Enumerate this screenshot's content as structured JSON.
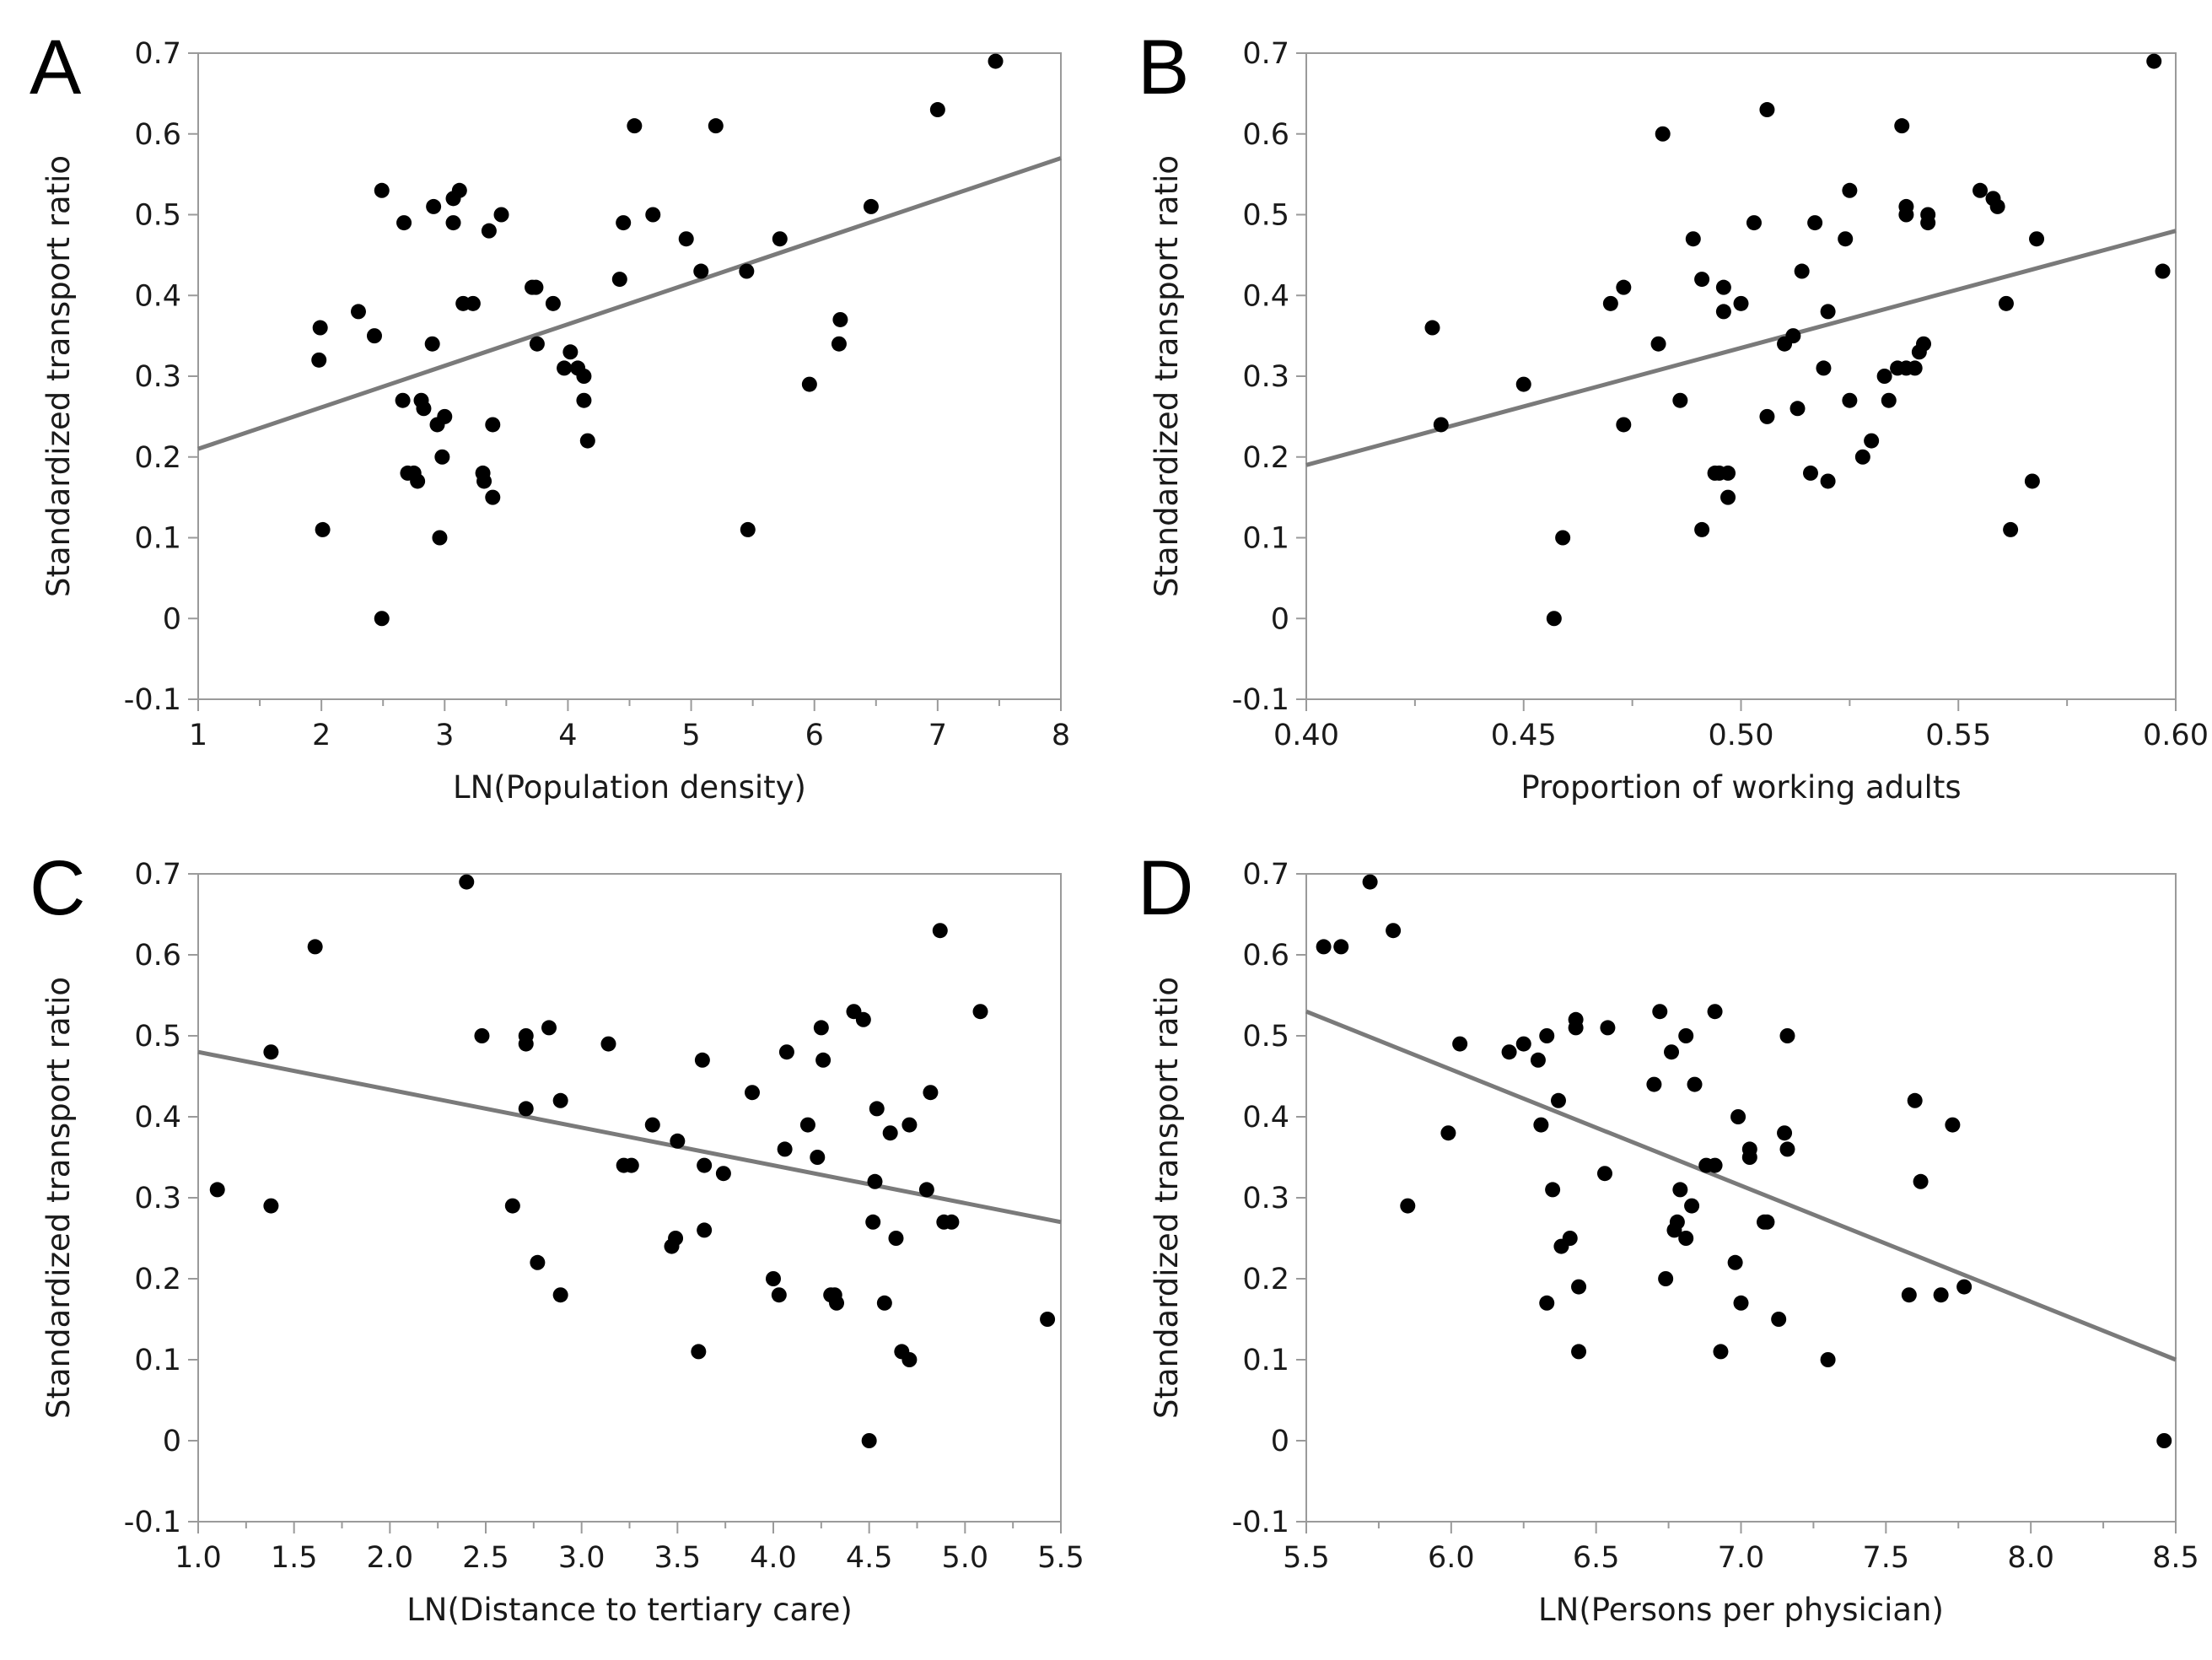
{
  "figure": {
    "background": "#ffffff",
    "point_color": "#000000",
    "line_color": "#7a7a7a",
    "axis_color": "#9a9a9a"
  },
  "chart_data": [
    {
      "panel": "A",
      "type": "scatter",
      "title": "",
      "xlabel": "LN(Population density)",
      "ylabel": "Standardized transport ratio",
      "xlim": [
        1,
        8
      ],
      "ylim": [
        -0.1,
        0.7
      ],
      "xticks": [
        1,
        2,
        3,
        4,
        5,
        6,
        7,
        8
      ],
      "xtick_labels": [
        "1",
        "2",
        "3",
        "4",
        "5",
        "6",
        "7",
        "8"
      ],
      "yticks": [
        -0.1,
        0,
        0.1,
        0.2,
        0.3,
        0.4,
        0.5,
        0.6,
        0.7
      ],
      "ytick_labels": [
        "-0.1",
        "0",
        "0.1",
        "0.2",
        "0.3",
        "0.4",
        "0.5",
        "0.6",
        "0.7"
      ],
      "fit_line": [
        [
          1,
          0.21
        ],
        [
          8,
          0.57
        ]
      ],
      "points": [
        [
          1.98,
          0.32
        ],
        [
          1.99,
          0.36
        ],
        [
          2.01,
          0.11
        ],
        [
          2.3,
          0.38
        ],
        [
          2.43,
          0.35
        ],
        [
          2.49,
          0.0
        ],
        [
          2.49,
          0.53
        ],
        [
          2.67,
          0.49
        ],
        [
          2.66,
          0.27
        ],
        [
          2.7,
          0.18
        ],
        [
          2.75,
          0.18
        ],
        [
          2.78,
          0.17
        ],
        [
          2.81,
          0.27
        ],
        [
          2.83,
          0.26
        ],
        [
          2.9,
          0.34
        ],
        [
          2.91,
          0.51
        ],
        [
          2.94,
          0.24
        ],
        [
          2.96,
          0.1
        ],
        [
          2.98,
          0.2
        ],
        [
          3.0,
          0.25
        ],
        [
          3.07,
          0.49
        ],
        [
          3.07,
          0.52
        ],
        [
          3.12,
          0.53
        ],
        [
          3.15,
          0.39
        ],
        [
          3.23,
          0.39
        ],
        [
          3.31,
          0.18
        ],
        [
          3.32,
          0.17
        ],
        [
          3.36,
          0.48
        ],
        [
          3.39,
          0.15
        ],
        [
          3.39,
          0.24
        ],
        [
          3.46,
          0.5
        ],
        [
          3.71,
          0.41
        ],
        [
          3.74,
          0.41
        ],
        [
          3.75,
          0.34
        ],
        [
          3.88,
          0.39
        ],
        [
          3.97,
          0.31
        ],
        [
          4.02,
          0.33
        ],
        [
          4.08,
          0.31
        ],
        [
          4.13,
          0.27
        ],
        [
          4.13,
          0.3
        ],
        [
          4.16,
          0.22
        ],
        [
          4.42,
          0.42
        ],
        [
          4.45,
          0.49
        ],
        [
          4.54,
          0.61
        ],
        [
          4.69,
          0.5
        ],
        [
          4.96,
          0.47
        ],
        [
          5.08,
          0.43
        ],
        [
          5.2,
          0.61
        ],
        [
          5.45,
          0.43
        ],
        [
          5.46,
          0.11
        ],
        [
          5.72,
          0.47
        ],
        [
          5.96,
          0.29
        ],
        [
          6.2,
          0.34
        ],
        [
          6.21,
          0.37
        ],
        [
          6.46,
          0.51
        ],
        [
          7.0,
          0.63
        ],
        [
          7.47,
          0.69
        ]
      ]
    },
    {
      "panel": "B",
      "type": "scatter",
      "title": "",
      "xlabel": "Proportion of working adults",
      "ylabel": "Standardized transport ratio",
      "xlim": [
        0.4,
        0.6
      ],
      "ylim": [
        -0.1,
        0.7
      ],
      "xticks": [
        0.4,
        0.45,
        0.5,
        0.55,
        0.6
      ],
      "xtick_labels": [
        "0.40",
        "0.45",
        "0.50",
        "0.55",
        "0.60"
      ],
      "yticks": [
        -0.1,
        0,
        0.1,
        0.2,
        0.3,
        0.4,
        0.5,
        0.6,
        0.7
      ],
      "ytick_labels": [
        "-0.1",
        "0",
        "0.1",
        "0.2",
        "0.3",
        "0.4",
        "0.5",
        "0.6",
        "0.7"
      ],
      "fit_line": [
        [
          0.4,
          0.19
        ],
        [
          0.6,
          0.48
        ]
      ],
      "points": [
        [
          0.429,
          0.36
        ],
        [
          0.431,
          0.24
        ],
        [
          0.45,
          0.29
        ],
        [
          0.457,
          0.0
        ],
        [
          0.459,
          0.1
        ],
        [
          0.47,
          0.39
        ],
        [
          0.473,
          0.41
        ],
        [
          0.473,
          0.24
        ],
        [
          0.481,
          0.34
        ],
        [
          0.482,
          0.6
        ],
        [
          0.486,
          0.27
        ],
        [
          0.489,
          0.47
        ],
        [
          0.491,
          0.42
        ],
        [
          0.491,
          0.11
        ],
        [
          0.494,
          0.18
        ],
        [
          0.495,
          0.18
        ],
        [
          0.496,
          0.41
        ],
        [
          0.496,
          0.38
        ],
        [
          0.497,
          0.18
        ],
        [
          0.497,
          0.15
        ],
        [
          0.503,
          0.49
        ],
        [
          0.5,
          0.39
        ],
        [
          0.506,
          0.63
        ],
        [
          0.506,
          0.25
        ],
        [
          0.51,
          0.34
        ],
        [
          0.512,
          0.35
        ],
        [
          0.513,
          0.26
        ],
        [
          0.514,
          0.43
        ],
        [
          0.516,
          0.18
        ],
        [
          0.517,
          0.49
        ],
        [
          0.519,
          0.31
        ],
        [
          0.52,
          0.17
        ],
        [
          0.52,
          0.38
        ],
        [
          0.524,
          0.47
        ],
        [
          0.525,
          0.53
        ],
        [
          0.525,
          0.27
        ],
        [
          0.528,
          0.2
        ],
        [
          0.53,
          0.22
        ],
        [
          0.533,
          0.3
        ],
        [
          0.534,
          0.27
        ],
        [
          0.536,
          0.31
        ],
        [
          0.537,
          0.61
        ],
        [
          0.538,
          0.31
        ],
        [
          0.538,
          0.51
        ],
        [
          0.538,
          0.5
        ],
        [
          0.54,
          0.31
        ],
        [
          0.541,
          0.33
        ],
        [
          0.542,
          0.34
        ],
        [
          0.543,
          0.49
        ],
        [
          0.543,
          0.5
        ],
        [
          0.555,
          0.53
        ],
        [
          0.558,
          0.52
        ],
        [
          0.559,
          0.51
        ],
        [
          0.561,
          0.39
        ],
        [
          0.562,
          0.11
        ],
        [
          0.567,
          0.17
        ],
        [
          0.568,
          0.47
        ],
        [
          0.595,
          0.69
        ],
        [
          0.597,
          0.43
        ]
      ]
    },
    {
      "panel": "C",
      "type": "scatter",
      "title": "",
      "xlabel": "LN(Distance to tertiary care)",
      "ylabel": "Standardized transport ratio",
      "xlim": [
        1.0,
        5.5
      ],
      "ylim": [
        -0.1,
        0.7
      ],
      "xticks": [
        1.0,
        1.5,
        2.0,
        2.5,
        3.0,
        3.5,
        4.0,
        4.5,
        5.0,
        5.5
      ],
      "xtick_labels": [
        "1.0",
        "1.5",
        "2.0",
        "2.5",
        "3.0",
        "3.5",
        "4.0",
        "4.5",
        "5.0",
        "5.5"
      ],
      "yticks": [
        -0.1,
        0,
        0.1,
        0.2,
        0.3,
        0.4,
        0.5,
        0.6,
        0.7
      ],
      "ytick_labels": [
        "-0.1",
        "0",
        "0.1",
        "0.2",
        "0.3",
        "0.4",
        "0.5",
        "0.6",
        "0.7"
      ],
      "fit_line": [
        [
          1.0,
          0.48
        ],
        [
          5.5,
          0.27
        ]
      ],
      "points": [
        [
          1.1,
          0.31
        ],
        [
          1.38,
          0.48
        ],
        [
          1.38,
          0.29
        ],
        [
          1.61,
          0.61
        ],
        [
          2.4,
          0.69
        ],
        [
          2.48,
          0.5
        ],
        [
          2.64,
          0.29
        ],
        [
          2.71,
          0.5
        ],
        [
          2.71,
          0.49
        ],
        [
          2.71,
          0.41
        ],
        [
          2.77,
          0.22
        ],
        [
          2.83,
          0.51
        ],
        [
          2.89,
          0.42
        ],
        [
          2.89,
          0.18
        ],
        [
          3.14,
          0.49
        ],
        [
          3.22,
          0.34
        ],
        [
          3.26,
          0.34
        ],
        [
          3.37,
          0.39
        ],
        [
          3.47,
          0.24
        ],
        [
          3.49,
          0.25
        ],
        [
          3.5,
          0.37
        ],
        [
          3.61,
          0.11
        ],
        [
          3.63,
          0.47
        ],
        [
          3.64,
          0.34
        ],
        [
          3.64,
          0.26
        ],
        [
          3.74,
          0.33
        ],
        [
          3.89,
          0.43
        ],
        [
          4.0,
          0.2
        ],
        [
          4.03,
          0.18
        ],
        [
          4.07,
          0.48
        ],
        [
          4.06,
          0.36
        ],
        [
          4.18,
          0.39
        ],
        [
          4.23,
          0.35
        ],
        [
          4.25,
          0.51
        ],
        [
          4.26,
          0.47
        ],
        [
          4.3,
          0.18
        ],
        [
          4.32,
          0.18
        ],
        [
          4.33,
          0.17
        ],
        [
          4.42,
          0.53
        ],
        [
          4.47,
          0.52
        ],
        [
          4.5,
          0.0
        ],
        [
          4.52,
          0.27
        ],
        [
          4.53,
          0.32
        ],
        [
          4.54,
          0.41
        ],
        [
          4.58,
          0.17
        ],
        [
          4.61,
          0.38
        ],
        [
          4.64,
          0.25
        ],
        [
          4.67,
          0.11
        ],
        [
          4.71,
          0.39
        ],
        [
          4.71,
          0.1
        ],
        [
          4.8,
          0.31
        ],
        [
          4.82,
          0.43
        ],
        [
          4.87,
          0.63
        ],
        [
          4.89,
          0.27
        ],
        [
          4.93,
          0.27
        ],
        [
          5.08,
          0.53
        ],
        [
          5.43,
          0.15
        ]
      ]
    },
    {
      "panel": "D",
      "type": "scatter",
      "title": "",
      "xlabel": "LN(Persons per physician)",
      "ylabel": "Standardized transport ratio",
      "xlim": [
        5.5,
        8.5
      ],
      "ylim": [
        -0.1,
        0.7
      ],
      "xticks": [
        5.5,
        6.0,
        6.5,
        7.0,
        7.5,
        8.0,
        8.5
      ],
      "xtick_labels": [
        "5.5",
        "6.0",
        "6.5",
        "7.0",
        "7.5",
        "8.0",
        "8.5"
      ],
      "yticks": [
        -0.1,
        0,
        0.1,
        0.2,
        0.3,
        0.4,
        0.5,
        0.6,
        0.7
      ],
      "ytick_labels": [
        "-0.1",
        "0",
        "0.1",
        "0.2",
        "0.3",
        "0.4",
        "0.5",
        "0.6",
        "0.7"
      ],
      "fit_line": [
        [
          5.5,
          0.53
        ],
        [
          8.5,
          0.1
        ]
      ],
      "points": [
        [
          5.56,
          0.61
        ],
        [
          5.62,
          0.61
        ],
        [
          5.72,
          0.69
        ],
        [
          5.8,
          0.63
        ],
        [
          5.85,
          0.29
        ],
        [
          5.99,
          0.38
        ],
        [
          6.03,
          0.49
        ],
        [
          6.2,
          0.48
        ],
        [
          6.25,
          0.49
        ],
        [
          6.3,
          0.47
        ],
        [
          6.31,
          0.39
        ],
        [
          6.33,
          0.17
        ],
        [
          6.33,
          0.5
        ],
        [
          6.35,
          0.31
        ],
        [
          6.37,
          0.42
        ],
        [
          6.38,
          0.24
        ],
        [
          6.41,
          0.25
        ],
        [
          6.43,
          0.52
        ],
        [
          6.43,
          0.51
        ],
        [
          6.44,
          0.11
        ],
        [
          6.44,
          0.19
        ],
        [
          6.53,
          0.33
        ],
        [
          6.54,
          0.51
        ],
        [
          6.7,
          0.44
        ],
        [
          6.72,
          0.53
        ],
        [
          6.74,
          0.2
        ],
        [
          6.76,
          0.48
        ],
        [
          6.77,
          0.26
        ],
        [
          6.78,
          0.27
        ],
        [
          6.79,
          0.31
        ],
        [
          6.81,
          0.25
        ],
        [
          6.81,
          0.5
        ],
        [
          6.83,
          0.29
        ],
        [
          6.84,
          0.44
        ],
        [
          6.88,
          0.34
        ],
        [
          6.91,
          0.34
        ],
        [
          6.91,
          0.53
        ],
        [
          6.93,
          0.11
        ],
        [
          6.98,
          0.22
        ],
        [
          6.99,
          0.4
        ],
        [
          7.0,
          0.17
        ],
        [
          7.03,
          0.35
        ],
        [
          7.03,
          0.36
        ],
        [
          7.08,
          0.27
        ],
        [
          7.09,
          0.27
        ],
        [
          7.13,
          0.15
        ],
        [
          7.15,
          0.38
        ],
        [
          7.16,
          0.5
        ],
        [
          7.16,
          0.36
        ],
        [
          7.3,
          0.1
        ],
        [
          7.58,
          0.18
        ],
        [
          7.6,
          0.42
        ],
        [
          7.62,
          0.32
        ],
        [
          7.69,
          0.18
        ],
        [
          7.73,
          0.39
        ],
        [
          7.77,
          0.19
        ],
        [
          8.46,
          0.0
        ]
      ]
    }
  ]
}
